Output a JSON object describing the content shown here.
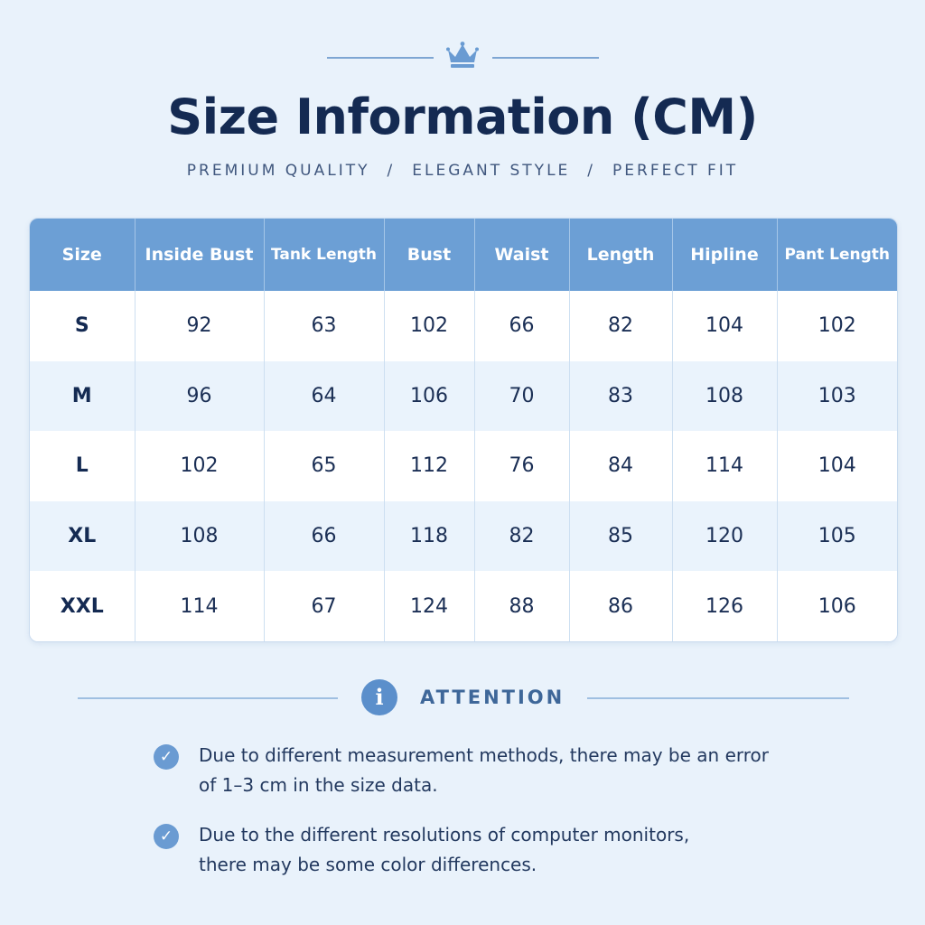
{
  "header": {
    "title": "Size Information (CM)",
    "tagline": [
      "PREMIUM QUALITY",
      "ELEGANT STYLE",
      "PERFECT FIT"
    ],
    "separator": "/"
  },
  "table": {
    "columns": [
      "Size",
      "Inside Bust",
      "Tank Length",
      "Bust",
      "Waist",
      "Length",
      "Hipline",
      "Pant Length"
    ],
    "rows": [
      [
        "S",
        "92",
        "63",
        "102",
        "66",
        "82",
        "104",
        "102"
      ],
      [
        "M",
        "96",
        "64",
        "106",
        "70",
        "83",
        "108",
        "103"
      ],
      [
        "L",
        "102",
        "65",
        "112",
        "76",
        "84",
        "114",
        "104"
      ],
      [
        "XL",
        "108",
        "66",
        "118",
        "82",
        "85",
        "120",
        "105"
      ],
      [
        "XXL",
        "114",
        "67",
        "124",
        "88",
        "86",
        "126",
        "106"
      ]
    ]
  },
  "attention": {
    "label": "ATTENTION",
    "icon": "info-icon",
    "notes": [
      {
        "line1": "Due to different measurement methods, there may be an error",
        "line2": "of 1–3 cm in the size data."
      },
      {
        "line1": "Due to the different resolutions of computer monitors,",
        "line2": "there may be some color differences."
      }
    ]
  },
  "colors": {
    "background": "#e9f2fb",
    "header_row": "#6c9fd5",
    "title": "#142a52",
    "accent": "#5b8fcb"
  }
}
